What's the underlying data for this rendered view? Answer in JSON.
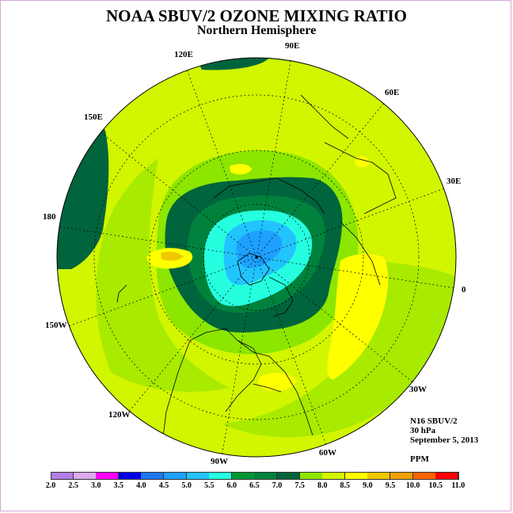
{
  "header": {
    "title": "NOAA SBUV/2 OZONE MIXING RATIO",
    "subtitle": "Northern Hemisphere"
  },
  "map": {
    "projection": "north-polar-stereographic",
    "longitude_labels": {
      "e90": "90E",
      "e60": "60E",
      "e30": "30E",
      "zero": "0",
      "w30": "30W",
      "w60": "60W",
      "w90": "90W",
      "w120": "120W",
      "w150": "150W",
      "e180": "180",
      "e150": "150E",
      "e120": "120E"
    }
  },
  "info": {
    "satellite": "N16 SBUV/2",
    "level": "30 hPa",
    "date": "September 5, 2013",
    "units": "PPM"
  },
  "colorbar": {
    "ticks": [
      "2.0",
      "2.5",
      "3.0",
      "3.5",
      "4.0",
      "4.5",
      "5.0",
      "5.5",
      "6.0",
      "6.5",
      "7.0",
      "7.5",
      "8.0",
      "8.5",
      "9.0",
      "9.5",
      "10.0",
      "10.5",
      "11.0"
    ],
    "colors": [
      "#b27ee6",
      "#dcaaf0",
      "#ff00ff",
      "#0000e6",
      "#1e78f0",
      "#1ea0ff",
      "#22c4ff",
      "#25ffe0",
      "#009632",
      "#00823c",
      "#00643c",
      "#8ce600",
      "#d2f500",
      "#ffff00",
      "#f0c800",
      "#f0a000",
      "#ff6400",
      "#ff0000",
      "#8c4b32"
    ]
  }
}
